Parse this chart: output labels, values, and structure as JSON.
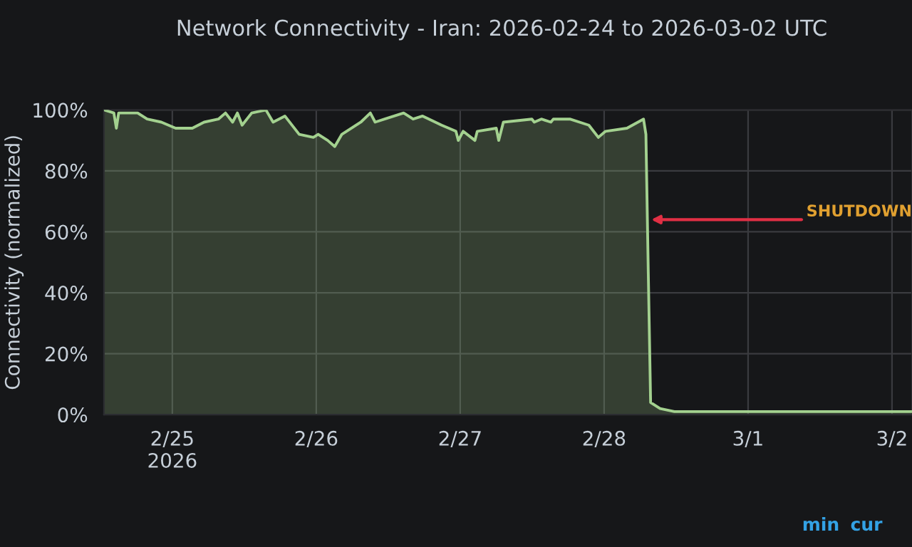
{
  "chart_data": {
    "type": "area",
    "title": "Network Connectivity - Iran: 2026-02-24 to 2026-03-02 UTC",
    "ylabel": "Connectivity (normalized)",
    "x": [
      "2026-02-24T12:40",
      "2026-02-24T14:15",
      "2026-02-24T14:40",
      "2026-02-24T15:03",
      "2026-02-24T18:13",
      "2026-02-24T19:48",
      "2026-02-24T22:10",
      "2026-02-25T00:33",
      "2026-02-25T03:20",
      "2026-02-25T05:18",
      "2026-02-25T07:41",
      "2026-02-25T08:52",
      "2026-02-25T10:03",
      "2026-02-25T10:51",
      "2026-02-25T11:38",
      "2026-02-25T13:14",
      "2026-02-25T15:36",
      "2026-02-25T16:48",
      "2026-02-25T18:46",
      "2026-02-25T21:09",
      "2026-02-25T23:31",
      "2026-02-26T00:19",
      "2026-02-26T01:54",
      "2026-02-26T03:05",
      "2026-02-26T04:16",
      "2026-02-26T07:26",
      "2026-02-26T09:01",
      "2026-02-26T09:49",
      "2026-02-26T11:24",
      "2026-02-26T14:34",
      "2026-02-26T16:09",
      "2026-02-26T17:44",
      "2026-02-26T20:54",
      "2026-02-26T23:17",
      "2026-02-26T23:41",
      "2026-02-27T00:29",
      "2026-02-27T02:27",
      "2026-02-27T02:51",
      "2026-02-27T06:01",
      "2026-02-27T06:25",
      "2026-02-27T07:12",
      "2026-02-27T11:57",
      "2026-02-27T12:21",
      "2026-02-27T13:32",
      "2026-02-27T15:07",
      "2026-02-27T15:32",
      "2026-02-27T18:17",
      "2026-02-27T21:27",
      "2026-02-27T23:02",
      "2026-02-28T00:14",
      "2026-02-28T03:48",
      "2026-02-28T06:34",
      "2026-02-28T06:58",
      "2026-02-28T07:22",
      "2026-02-28T07:45",
      "2026-02-28T09:20",
      "2026-02-28T11:43",
      "2026-02-28T18:03",
      "2026-03-01T01:58",
      "2026-03-01T13:52",
      "2026-03-01T21:47",
      "2026-03-02T03:20"
    ],
    "series": [
      {
        "color": "#a3d18f",
        "values": [
          100,
          99,
          94,
          99,
          99,
          97,
          96,
          94,
          94,
          96,
          97,
          99,
          96,
          99,
          95,
          99,
          100,
          96,
          98,
          92,
          91,
          92,
          90,
          88,
          92,
          96,
          99,
          96,
          97,
          99,
          97,
          98,
          95,
          93,
          90,
          93,
          90,
          93,
          94,
          90,
          96,
          97,
          96,
          97,
          96,
          97,
          97,
          95,
          91,
          93,
          94,
          97,
          92,
          46,
          4,
          2,
          1,
          1,
          1,
          1,
          1,
          1
        ]
      }
    ],
    "xlim": [
      "2026-02-24T12:36",
      "2026-03-02T03:20"
    ],
    "xticks": [
      {
        "value": "2026-02-25",
        "label": "2/25\n2026"
      },
      {
        "value": "2026-02-26",
        "label": "2/26"
      },
      {
        "value": "2026-02-27",
        "label": "2/27"
      },
      {
        "value": "2026-02-28",
        "label": "2/28"
      },
      {
        "value": "2026-03-01",
        "label": "3/1"
      },
      {
        "value": "2026-03-02",
        "label": "3/2"
      }
    ],
    "ylim": [
      0,
      100
    ],
    "yticks": [
      {
        "value": 0,
        "label": "0%"
      },
      {
        "value": 20,
        "label": "20%"
      },
      {
        "value": 40,
        "label": "40%"
      },
      {
        "value": 60,
        "label": "60%"
      },
      {
        "value": 80,
        "label": "80%"
      },
      {
        "value": 100,
        "label": "100%"
      }
    ],
    "annotations": [
      {
        "text": "SHUTDOWN",
        "x": "2026-02-28T07:50",
        "y": 64
      },
      "min",
      "cur"
    ],
    "grid": true,
    "legend": false
  }
}
